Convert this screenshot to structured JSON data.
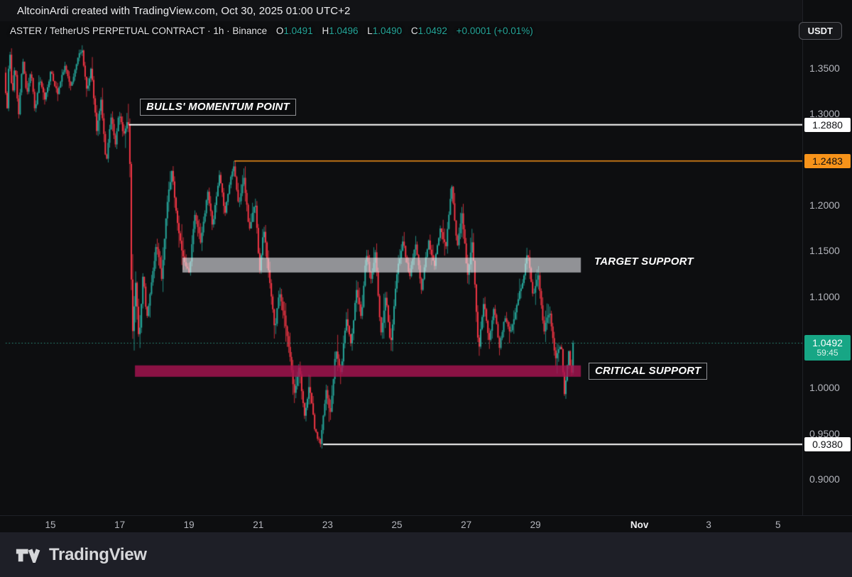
{
  "attribution": "AltcoinArdi created with TradingView.com, Oct 30, 2025 01:00 UTC+2",
  "symbol_line": {
    "name": "ASTER / TetherUS PERPETUAL CONTRACT · 1h · Binance",
    "ohlc": [
      {
        "label": "O",
        "value": "1.0491"
      },
      {
        "label": "H",
        "value": "1.0496"
      },
      {
        "label": "L",
        "value": "1.0490"
      },
      {
        "label": "C",
        "value": "1.0492"
      }
    ],
    "change": "+0.0001 (+0.01%)"
  },
  "currency_button": "USDT",
  "watermark": "TradingView",
  "colors": {
    "background": "#0d0e10",
    "candle_up": "#26a69a",
    "candle_down": "#f23645",
    "axis_text": "#b4b6bd",
    "level_white": "#ffffff",
    "level_orange": "#f7931a",
    "zone_gray": "rgba(234,235,240,0.60)",
    "zone_crimson": "rgba(166,20,80,0.82)",
    "last_price_line": "#2e9c86",
    "last_price_badge": "#17a685"
  },
  "chart_data": {
    "type": "candlestick",
    "symbol": "ASTER / TetherUS PERPETUAL CONTRACT",
    "exchange": "Binance",
    "interval": "1h",
    "y_axis": {
      "ticks": [
        {
          "label": "1.3500",
          "price": 1.35
        },
        {
          "label": "1.3000",
          "price": 1.3
        },
        {
          "label": "1.2000",
          "price": 1.2
        },
        {
          "label": "1.1500",
          "price": 1.15
        },
        {
          "label": "1.1000",
          "price": 1.1
        },
        {
          "label": "1.0000",
          "price": 1.0
        },
        {
          "label": "0.9500",
          "price": 0.95
        },
        {
          "label": "0.9000",
          "price": 0.9
        }
      ],
      "range": [
        0.885,
        1.385
      ]
    },
    "x_axis": {
      "ticks": [
        {
          "label": "15",
          "day": 15
        },
        {
          "label": "17",
          "day": 17
        },
        {
          "label": "19",
          "day": 19
        },
        {
          "label": "21",
          "day": 21
        },
        {
          "label": "23",
          "day": 23
        },
        {
          "label": "25",
          "day": 25
        },
        {
          "label": "27",
          "day": 27
        },
        {
          "label": "29",
          "day": 29
        },
        {
          "label": "Nov",
          "day": 32,
          "emph": true
        },
        {
          "label": "3",
          "day": 34
        },
        {
          "label": "5",
          "day": 36
        }
      ],
      "visible_day_range": [
        13.6,
        37.2
      ]
    },
    "levels": [
      {
        "price": 1.288,
        "day_start": 17.27,
        "color": "#ffffff",
        "width": 2,
        "badge": "1.2880",
        "badge_bg": "#ffffff",
        "badge_fg": "#0c0d10"
      },
      {
        "price": 1.2483,
        "day_start": 20.31,
        "color": "#f7931a",
        "width": 1.5,
        "badge": "1.2483",
        "badge_bg": "#f7931a",
        "badge_fg": "#0c0d10"
      },
      {
        "price": 0.938,
        "day_start": 22.87,
        "color": "#ffffff",
        "width": 2,
        "badge": "0.9380",
        "badge_bg": "#ffffff",
        "badge_fg": "#0c0d10"
      }
    ],
    "zones": [
      {
        "label": "TARGET SUPPORT",
        "day_start": 18.81,
        "day_end": 30.31,
        "price_top": 1.1425,
        "price_bottom": 1.1262,
        "color": "rgba(234,235,240,0.60)"
      },
      {
        "label": "CRITICAL SUPPORT",
        "day_start": 17.44,
        "day_end": 30.31,
        "price_top": 1.0245,
        "price_bottom": 1.012,
        "color": "rgba(166,20,80,0.82)"
      }
    ],
    "annotations": {
      "bulls": "BULLS' MOMENTUM POINT",
      "target": "TARGET SUPPORT",
      "critical": "CRITICAL SUPPORT"
    },
    "last_price": {
      "price": 1.0492,
      "label": "1.0492",
      "countdown": "59:45"
    },
    "price_path": [
      [
        13.71,
        1.345
      ],
      [
        13.79,
        1.302
      ],
      [
        13.86,
        1.375
      ],
      [
        13.94,
        1.318
      ],
      [
        14.02,
        1.356
      ],
      [
        14.12,
        1.296
      ],
      [
        14.24,
        1.36
      ],
      [
        14.36,
        1.322
      ],
      [
        14.48,
        1.348
      ],
      [
        14.6,
        1.302
      ],
      [
        14.72,
        1.338
      ],
      [
        14.88,
        1.316
      ],
      [
        15.05,
        1.346
      ],
      [
        15.25,
        1.322
      ],
      [
        15.45,
        1.352
      ],
      [
        15.65,
        1.33
      ],
      [
        15.82,
        1.36
      ],
      [
        15.95,
        1.372
      ],
      [
        16.1,
        1.322
      ],
      [
        16.22,
        1.352
      ],
      [
        16.38,
        1.28
      ],
      [
        16.5,
        1.316
      ],
      [
        16.65,
        1.246
      ],
      [
        16.8,
        1.3
      ],
      [
        16.92,
        1.264
      ],
      [
        17.02,
        1.302
      ],
      [
        17.15,
        1.276
      ],
      [
        17.26,
        1.292
      ],
      [
        17.32,
        1.288
      ],
      [
        17.4,
        1.05
      ],
      [
        17.5,
        1.118
      ],
      [
        17.6,
        1.048
      ],
      [
        17.72,
        1.128
      ],
      [
        17.82,
        1.072
      ],
      [
        17.95,
        1.112
      ],
      [
        18.1,
        1.158
      ],
      [
        18.25,
        1.12
      ],
      [
        18.42,
        1.205
      ],
      [
        18.55,
        1.238
      ],
      [
        18.72,
        1.176
      ],
      [
        18.88,
        1.142
      ],
      [
        19.05,
        1.126
      ],
      [
        19.22,
        1.192
      ],
      [
        19.38,
        1.158
      ],
      [
        19.58,
        1.216
      ],
      [
        19.72,
        1.178
      ],
      [
        19.92,
        1.232
      ],
      [
        20.08,
        1.192
      ],
      [
        20.22,
        1.225
      ],
      [
        20.33,
        1.246
      ],
      [
        20.48,
        1.198
      ],
      [
        20.62,
        1.232
      ],
      [
        20.78,
        1.172
      ],
      [
        20.95,
        1.205
      ],
      [
        21.08,
        1.128
      ],
      [
        21.2,
        1.176
      ],
      [
        21.38,
        1.112
      ],
      [
        21.52,
        1.064
      ],
      [
        21.65,
        1.108
      ],
      [
        21.8,
        1.076
      ],
      [
        21.95,
        1.036
      ],
      [
        22.08,
        0.992
      ],
      [
        22.22,
        1.026
      ],
      [
        22.38,
        0.966
      ],
      [
        22.52,
        1.004
      ],
      [
        22.68,
        0.952
      ],
      [
        22.84,
        0.938
      ],
      [
        23.0,
        0.998
      ],
      [
        23.12,
        0.972
      ],
      [
        23.28,
        1.042
      ],
      [
        23.42,
        1.015
      ],
      [
        23.58,
        1.078
      ],
      [
        23.72,
        1.048
      ],
      [
        23.88,
        1.108
      ],
      [
        24.02,
        1.075
      ],
      [
        24.15,
        1.148
      ],
      [
        24.3,
        1.118
      ],
      [
        24.42,
        1.15
      ],
      [
        24.58,
        1.058
      ],
      [
        24.72,
        1.102
      ],
      [
        24.86,
        1.044
      ],
      [
        25.05,
        1.128
      ],
      [
        25.22,
        1.162
      ],
      [
        25.4,
        1.12
      ],
      [
        25.58,
        1.158
      ],
      [
        25.75,
        1.108
      ],
      [
        25.95,
        1.162
      ],
      [
        26.12,
        1.132
      ],
      [
        26.3,
        1.178
      ],
      [
        26.45,
        1.152
      ],
      [
        26.62,
        1.222
      ],
      [
        26.78,
        1.152
      ],
      [
        26.92,
        1.192
      ],
      [
        27.08,
        1.122
      ],
      [
        27.22,
        1.162
      ],
      [
        27.4,
        1.04
      ],
      [
        27.55,
        1.096
      ],
      [
        27.7,
        1.052
      ],
      [
        27.85,
        1.088
      ],
      [
        28.0,
        1.044
      ],
      [
        28.15,
        1.078
      ],
      [
        28.32,
        1.058
      ],
      [
        28.5,
        1.092
      ],
      [
        28.68,
        1.118
      ],
      [
        28.82,
        1.15
      ],
      [
        28.98,
        1.098
      ],
      [
        29.12,
        1.128
      ],
      [
        29.28,
        1.062
      ],
      [
        29.45,
        1.085
      ],
      [
        29.62,
        1.032
      ],
      [
        29.78,
        1.048
      ],
      [
        29.88,
        0.992
      ],
      [
        30.0,
        1.04
      ],
      [
        30.08,
        1.012
      ],
      [
        30.13,
        1.0492
      ]
    ]
  }
}
